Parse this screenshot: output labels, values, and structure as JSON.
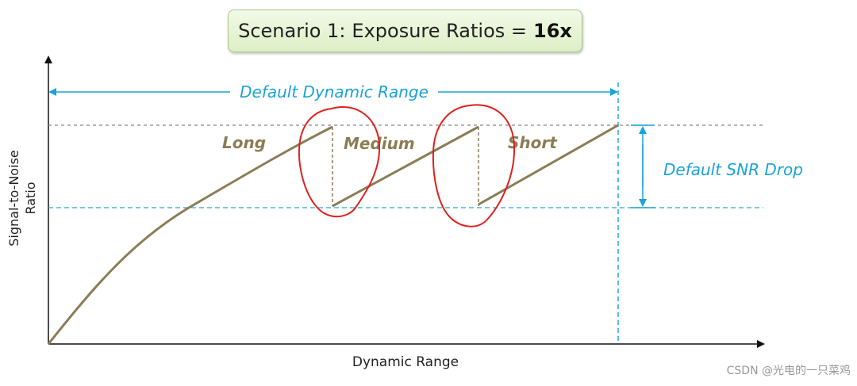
{
  "title": {
    "prefix": "Scenario 1:",
    "label": "Exposure Ratios =",
    "value": "16x"
  },
  "axes": {
    "y_label_line1": "Signal-to-Noise",
    "y_label_line2": "Ratio",
    "x_label": "Dynamic Range"
  },
  "annotations": {
    "dynamic_range": "Default Dynamic Range",
    "snr_drop": "Default SNR Drop"
  },
  "segments": {
    "long": "Long",
    "medium": "Medium",
    "short": "Short"
  },
  "watermark": "CSDN @光电的一只菜鸡",
  "colors": {
    "curve": "#8b7d56",
    "label": "#8b7d56",
    "annotation": "#1aa3d6",
    "threshold_top": "#888888",
    "threshold_bottom": "#2aa8cc",
    "marker": "#e0201e",
    "title_bg": "#e4f2d2"
  }
}
